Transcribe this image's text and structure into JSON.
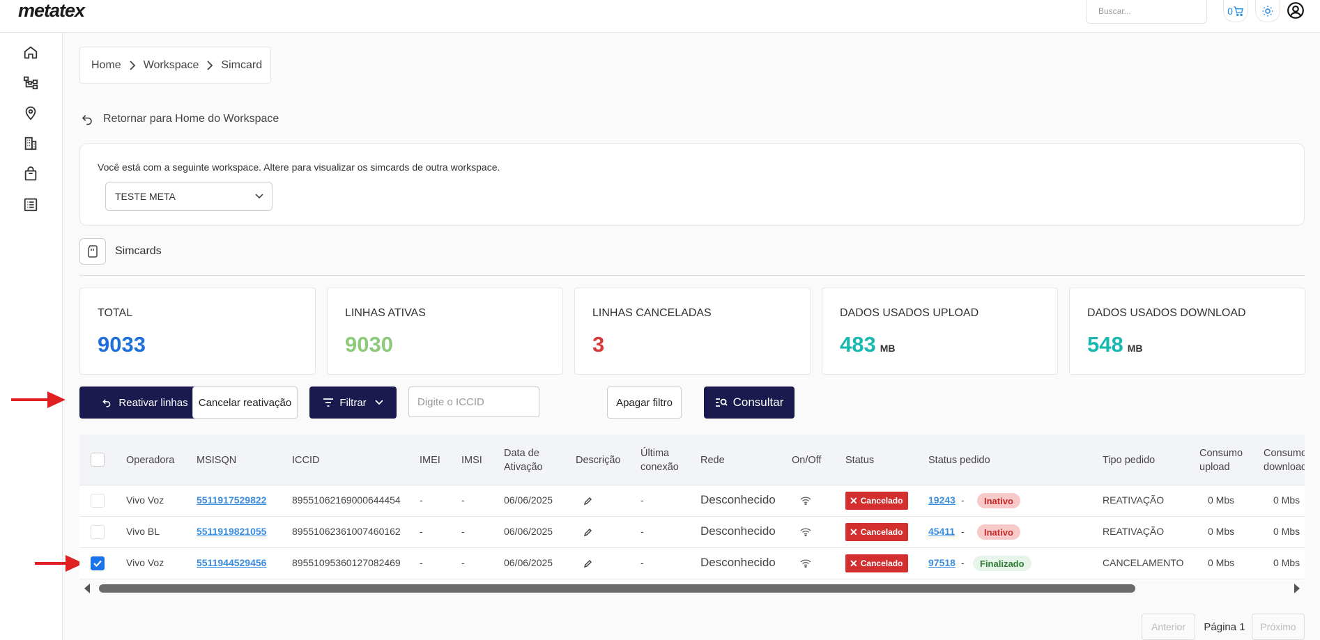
{
  "app": {
    "logo": "metatex"
  },
  "header": {
    "search_placeholder": "Buscar...",
    "cart_count": "0"
  },
  "breadcrumb": {
    "items": [
      "Home",
      "Workspace",
      "Simcard"
    ]
  },
  "back_link": "Retornar para Home do Workspace",
  "workspace": {
    "notice": "Você está com a seguinte workspace. Altere para visualizar os simcards de outra workspace.",
    "selected": "TESTE META"
  },
  "section_title": "Simcards",
  "stats": [
    {
      "label": "TOTAL",
      "value": "9033",
      "unit": "",
      "color": "#1e6fd9"
    },
    {
      "label": "LINHAS ATIVAS",
      "value": "9030",
      "unit": "",
      "color": "#8cc97a"
    },
    {
      "label": "LINHAS CANCELADAS",
      "value": "3",
      "unit": "",
      "color": "#d63a3a"
    },
    {
      "label": "DADOS USADOS UPLOAD",
      "value": "483",
      "unit": "MB",
      "color": "#18b8b0"
    },
    {
      "label": "DADOS USADOS DOWNLOAD",
      "value": "548",
      "unit": "MB",
      "color": "#18b8b0"
    }
  ],
  "toolbar": {
    "reactivate": "Reativar linhas",
    "cancel_reactivation": "Cancelar reativação",
    "filter": "Filtrar",
    "iccid_placeholder": "Digite o ICCID",
    "clear_filter": "Apagar filtro",
    "consult": "Consultar"
  },
  "table": {
    "columns": [
      "Operadora",
      "MSISQN",
      "ICCID",
      "IMEI",
      "IMSI",
      "Data de Ativação",
      "Descrição",
      "Última conexão",
      "Rede",
      "On/Off",
      "Status",
      "Status pedido",
      "Tipo pedido",
      "Consumo upload",
      "Consumo download"
    ],
    "rows": [
      {
        "checked": false,
        "operadora": "Vivo Voz",
        "msisdn": "5511917529822",
        "iccid": "89551062169000644454",
        "imei": "-",
        "imsi": "-",
        "data": "06/06/2025",
        "ultima": "-",
        "rede": "Desconhecido",
        "status": "Cancelado",
        "pedido": "19243",
        "dash": "-",
        "pedido_status": "Inativo",
        "pedido_kind": "inativo",
        "tipo": "REATIVAÇÃO",
        "up": "0 Mbs",
        "down": "0 Mbs"
      },
      {
        "checked": false,
        "operadora": "Vivo BL",
        "msisdn": "5511919821055",
        "iccid": "89551062361007460162",
        "imei": "-",
        "imsi": "-",
        "data": "06/06/2025",
        "ultima": "-",
        "rede": "Desconhecido",
        "status": "Cancelado",
        "pedido": "45411",
        "dash": "-",
        "pedido_status": "Inativo",
        "pedido_kind": "inativo",
        "tipo": "REATIVAÇÃO",
        "up": "0 Mbs",
        "down": "0 Mbs"
      },
      {
        "checked": true,
        "operadora": "Vivo Voz",
        "msisdn": "5511944529456",
        "iccid": "89551095360127082469",
        "imei": "-",
        "imsi": "-",
        "data": "06/06/2025",
        "ultima": "-",
        "rede": "Desconhecido",
        "status": "Cancelado",
        "pedido": "97518",
        "dash": "-",
        "pedido_status": "Finalizado",
        "pedido_kind": "fin",
        "tipo": "CANCELAMENTO",
        "up": "0 Mbs",
        "down": "0 Mbs"
      }
    ]
  },
  "pagination": {
    "prev": "Anterior",
    "page": "Página 1",
    "next": "Próximo"
  }
}
